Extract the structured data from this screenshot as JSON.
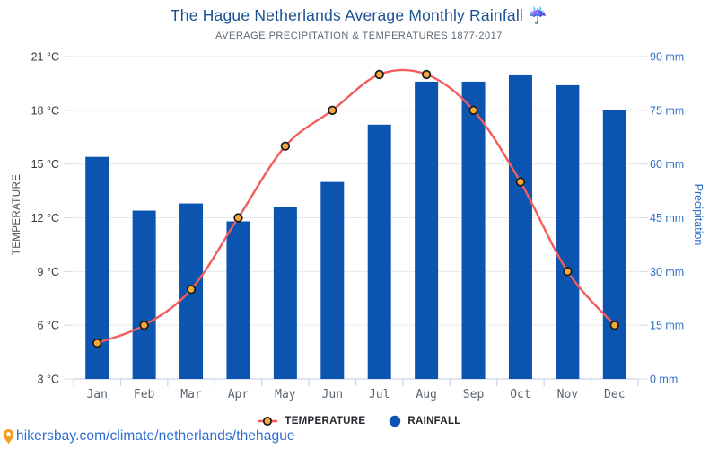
{
  "header": {
    "title": "The Hague Netherlands Average Monthly Rainfall",
    "title_icon": "☔",
    "subtitle": "AVERAGE PRECIPITATION & TEMPERATURES 1877-2017"
  },
  "chart_data": {
    "type": "bar+line",
    "categories": [
      "Jan",
      "Feb",
      "Mar",
      "Apr",
      "May",
      "Jun",
      "Jul",
      "Aug",
      "Sep",
      "Oct",
      "Nov",
      "Dec"
    ],
    "series": [
      {
        "name": "TEMPERATURE",
        "type": "line",
        "axis": "left",
        "unit": "°C",
        "color": "#f25c5c",
        "marker_fill": "#f7a83c",
        "marker_stroke": "#17191c",
        "values": [
          5,
          6,
          8,
          12,
          16,
          18,
          20,
          20,
          18,
          14,
          9,
          6
        ]
      },
      {
        "name": "RAINFALL",
        "type": "bar",
        "axis": "right",
        "unit": "mm",
        "color": "#0b55b1",
        "values": [
          62,
          47,
          49,
          44,
          48,
          55,
          71,
          83,
          83,
          85,
          82,
          75
        ]
      }
    ],
    "left_axis": {
      "label": "TEMPERATURE",
      "min": 3,
      "max": 21,
      "tick_step": 3,
      "ticks": [
        "3 °C",
        "6 °C",
        "9 °C",
        "12 °C",
        "15 °C",
        "18 °C",
        "21 °C"
      ]
    },
    "right_axis": {
      "label": "Precipitation",
      "min": 0,
      "max": 90,
      "tick_step": 15,
      "ticks": [
        "0 mm",
        "15 mm",
        "30 mm",
        "45 mm",
        "60 mm",
        "75 mm",
        "90 mm"
      ]
    },
    "grid": true,
    "legend_position": "bottom"
  },
  "footer": {
    "link": "hikersbay.com/climate/netherlands/thehague"
  },
  "colors": {
    "title": "#1b5192",
    "subtitle": "#5f6a72",
    "grid": "#e9e9ed",
    "axis_line": "#c9d5e9",
    "tick": "#d9dade",
    "left_label": "#33383e",
    "right_label": "#2e6ec4",
    "month_label": "#5c6670",
    "axis_title_left": "#424a55",
    "axis_title_right": "#2e6ec4",
    "legend_text": "#22262a",
    "link": "#2d6dd2",
    "pin": "#f59d20"
  }
}
